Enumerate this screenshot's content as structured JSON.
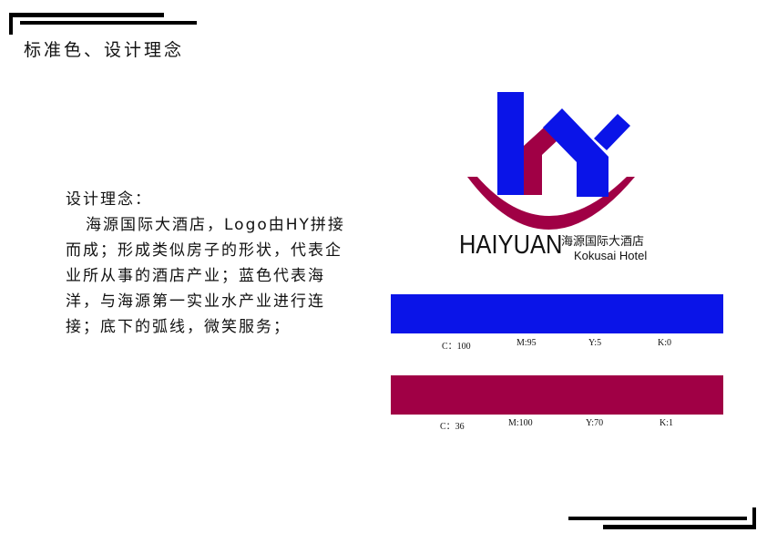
{
  "page": {
    "heading": "标准色、设计理念"
  },
  "concept": {
    "label": "设计理念：",
    "body": "海源国际大酒店，Logo由HY拼接而成；形成类似房子的形状，代表企业所从事的酒店产业；蓝色代表海洋，与海源第一实业水产业进行连接；底下的弧线，微笑服务；"
  },
  "logo": {
    "icon": "hy-house-smile-logo",
    "brand_latin": "HAIYUAN",
    "brand_cn": "海源国际大酒店",
    "brand_en": "Kokusai Hotel"
  },
  "colors": {
    "blue": "#0a14e8",
    "crimson": "#a00045"
  },
  "standard_colors": [
    {
      "name": "blue",
      "hex": "#0a14e8",
      "c": "C：100",
      "m": "M:95",
      "y": "Y:5",
      "k": "K:0"
    },
    {
      "name": "crimson",
      "hex": "#a00045",
      "c": "C：36",
      "m": "M:100",
      "y": "Y:70",
      "k": "K:1"
    }
  ]
}
